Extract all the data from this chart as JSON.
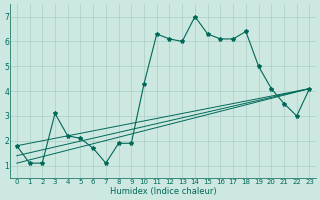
{
  "xlabel": "Humidex (Indice chaleur)",
  "background_color": "#cce8e0",
  "grid_color": "#aacfc8",
  "line_color": "#006858",
  "xlim": [
    -0.5,
    23.5
  ],
  "ylim": [
    0.5,
    7.5
  ],
  "xticks": [
    0,
    1,
    2,
    3,
    4,
    5,
    6,
    7,
    8,
    9,
    10,
    11,
    12,
    13,
    14,
    15,
    16,
    17,
    18,
    19,
    20,
    21,
    22,
    23
  ],
  "yticks": [
    1,
    2,
    3,
    4,
    5,
    6,
    7
  ],
  "main_series_x": [
    0,
    1,
    2,
    3,
    4,
    5,
    6,
    7,
    8,
    9,
    10,
    11,
    12,
    13,
    14,
    15,
    16,
    17,
    18,
    19,
    20,
    21,
    22,
    23
  ],
  "main_series_y": [
    1.8,
    1.1,
    1.1,
    3.1,
    2.2,
    2.1,
    1.7,
    1.1,
    1.9,
    1.9,
    4.3,
    6.3,
    6.1,
    6.0,
    7.0,
    6.3,
    6.1,
    6.1,
    6.4,
    5.0,
    4.1,
    3.5,
    3.0,
    4.1
  ],
  "trend1_x": [
    0,
    23
  ],
  "trend1_y": [
    1.8,
    4.1
  ],
  "trend2_x": [
    0,
    23
  ],
  "trend2_y": [
    1.4,
    4.1
  ],
  "trend3_x": [
    0,
    23
  ],
  "trend3_y": [
    1.1,
    4.1
  ],
  "xlabel_fontsize": 6.0,
  "tick_fontsize": 5.0,
  "ytick_fontsize": 5.5
}
